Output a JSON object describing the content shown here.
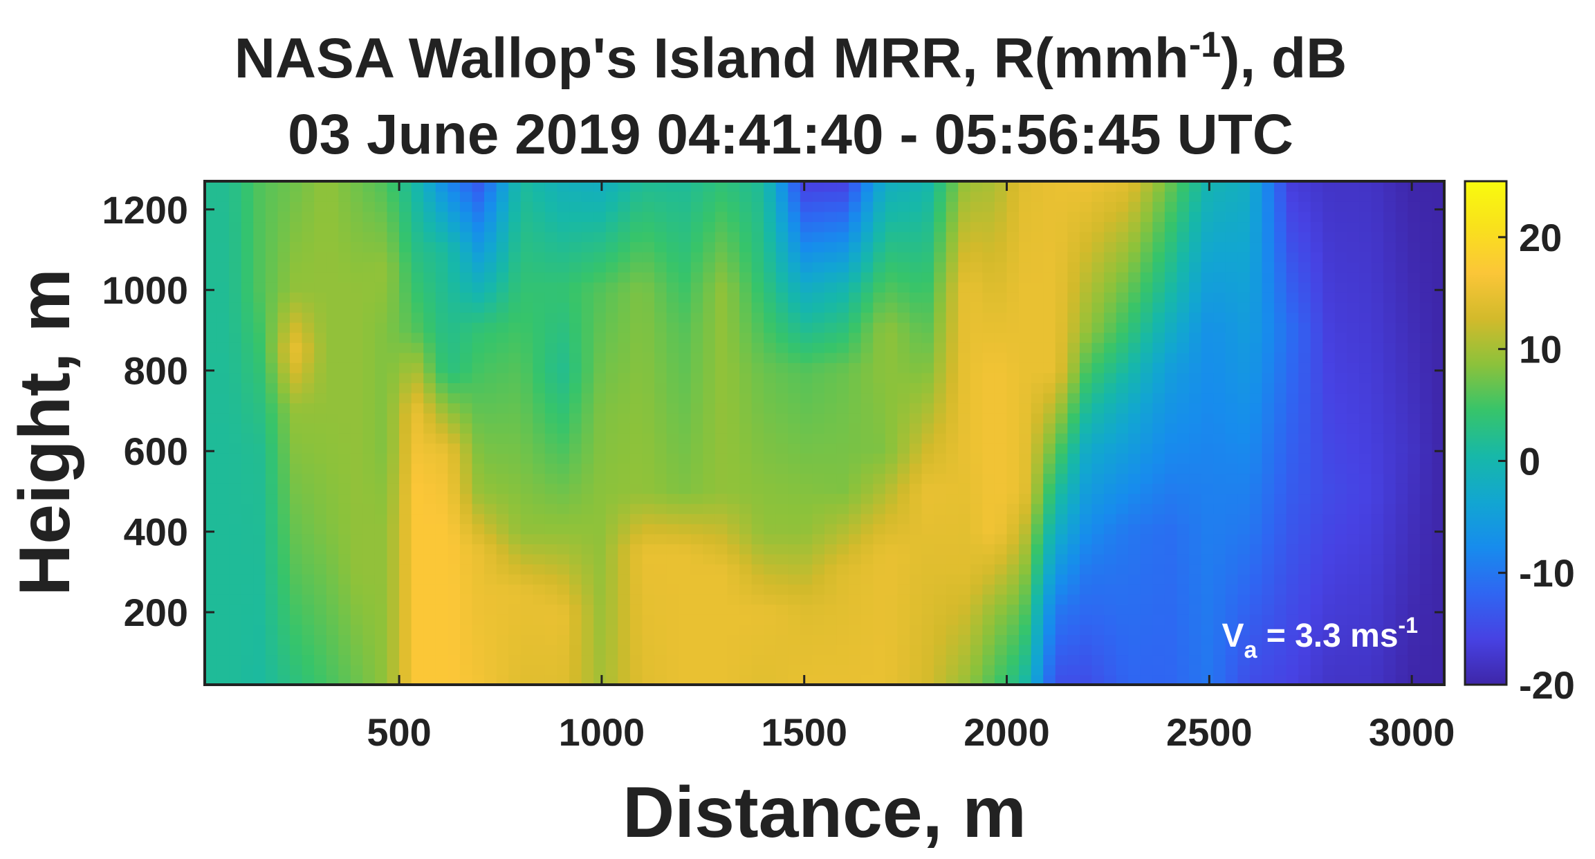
{
  "chart_data": {
    "type": "heatmap",
    "title_line1_main": "NASA Wallop's Island MRR, R(mmh",
    "title_line1_sup": "-1",
    "title_line1_end": "), dB",
    "title_line2": "03 June 2019 04:41:40 - 05:56:45 UTC",
    "xlabel": "Distance, m",
    "ylabel": "Height, m",
    "xlim": [
      20,
      3080
    ],
    "ylim": [
      20,
      1270
    ],
    "xticks": [
      500,
      1000,
      1500,
      2000,
      2500,
      3000
    ],
    "yticks": [
      200,
      400,
      600,
      800,
      1000,
      1200
    ],
    "colorbar": {
      "range": [
        -20,
        25
      ],
      "ticks": [
        -20,
        -10,
        0,
        10,
        20
      ],
      "colormap": "parula",
      "stops": [
        "#3e26a8",
        "#4742e3",
        "#2f66f2",
        "#178ced",
        "#12a6d1",
        "#17b8a8",
        "#37c46a",
        "#8cc23b",
        "#d3ba2b",
        "#fbc638",
        "#f9e11c",
        "#f9fb0e"
      ]
    },
    "annotation": {
      "main": "V",
      "sub": "a",
      "rest": " = 3.3 ms",
      "sup": "-1"
    },
    "grid": false,
    "columns": [
      {
        "x": 80,
        "profile": [
          [
            0,
            1.5
          ],
          [
            600,
            1.5
          ],
          [
            1300,
            2
          ]
        ]
      },
      {
        "x": 160,
        "profile": [
          [
            0,
            1
          ],
          [
            600,
            2
          ],
          [
            1000,
            6
          ],
          [
            1300,
            6
          ]
        ]
      },
      {
        "x": 240,
        "profile": [
          [
            0,
            3
          ],
          [
            300,
            6
          ],
          [
            700,
            9
          ],
          [
            850,
            15
          ],
          [
            1000,
            9
          ],
          [
            1300,
            7
          ]
        ]
      },
      {
        "x": 320,
        "profile": [
          [
            0,
            5
          ],
          [
            400,
            8
          ],
          [
            700,
            9
          ],
          [
            1300,
            9
          ]
        ]
      },
      {
        "x": 400,
        "profile": [
          [
            0,
            7
          ],
          [
            300,
            9
          ],
          [
            1000,
            9
          ],
          [
            1300,
            7
          ]
        ]
      },
      {
        "x": 470,
        "profile": [
          [
            0,
            9
          ],
          [
            400,
            9
          ],
          [
            600,
            8
          ],
          [
            900,
            8
          ],
          [
            1050,
            9
          ],
          [
            1300,
            5
          ]
        ]
      },
      {
        "x": 540,
        "profile": [
          [
            0,
            17
          ],
          [
            500,
            17
          ],
          [
            700,
            15
          ],
          [
            900,
            6
          ],
          [
            1150,
            2
          ],
          [
            1300,
            0
          ]
        ]
      },
      {
        "x": 620,
        "profile": [
          [
            0,
            17
          ],
          [
            400,
            17
          ],
          [
            600,
            15
          ],
          [
            800,
            3
          ],
          [
            1100,
            1
          ],
          [
            1300,
            -10
          ]
        ]
      },
      {
        "x": 700,
        "profile": [
          [
            0,
            16
          ],
          [
            350,
            15
          ],
          [
            500,
            9
          ],
          [
            900,
            4
          ],
          [
            1300,
            -15
          ]
        ]
      },
      {
        "x": 800,
        "profile": [
          [
            0,
            14
          ],
          [
            250,
            15
          ],
          [
            400,
            9
          ],
          [
            800,
            6
          ],
          [
            1300,
            1
          ]
        ]
      },
      {
        "x": 900,
        "profile": [
          [
            0,
            14
          ],
          [
            200,
            15
          ],
          [
            400,
            9
          ],
          [
            800,
            2
          ],
          [
            1000,
            4
          ],
          [
            1300,
            -2
          ]
        ]
      },
      {
        "x": 1000,
        "profile": [
          [
            0,
            10
          ],
          [
            350,
            9
          ],
          [
            700,
            8
          ],
          [
            1000,
            6
          ],
          [
            1300,
            -3
          ]
        ]
      },
      {
        "x": 1100,
        "profile": [
          [
            0,
            14
          ],
          [
            350,
            15
          ],
          [
            500,
            9
          ],
          [
            1000,
            8
          ],
          [
            1300,
            1
          ]
        ]
      },
      {
        "x": 1200,
        "profile": [
          [
            0,
            15
          ],
          [
            350,
            15
          ],
          [
            500,
            8
          ],
          [
            900,
            6
          ],
          [
            1300,
            1
          ]
        ]
      },
      {
        "x": 1300,
        "profile": [
          [
            0,
            15
          ],
          [
            300,
            15
          ],
          [
            500,
            9
          ],
          [
            1000,
            9
          ],
          [
            1300,
            3
          ]
        ]
      },
      {
        "x": 1400,
        "profile": [
          [
            0,
            14
          ],
          [
            200,
            15
          ],
          [
            400,
            9
          ],
          [
            800,
            7
          ],
          [
            1050,
            3
          ],
          [
            1300,
            1
          ]
        ]
      },
      {
        "x": 1500,
        "profile": [
          [
            0,
            15
          ],
          [
            200,
            14
          ],
          [
            400,
            9
          ],
          [
            800,
            6
          ],
          [
            1000,
            -2
          ],
          [
            1300,
            -18
          ]
        ]
      },
      {
        "x": 1600,
        "profile": [
          [
            0,
            15
          ],
          [
            300,
            14
          ],
          [
            500,
            8
          ],
          [
            800,
            7
          ],
          [
            1000,
            0
          ],
          [
            1300,
            -18
          ]
        ]
      },
      {
        "x": 1700,
        "profile": [
          [
            0,
            15
          ],
          [
            350,
            15
          ],
          [
            600,
            8
          ],
          [
            900,
            9
          ],
          [
            1300,
            -3
          ]
        ]
      },
      {
        "x": 1800,
        "profile": [
          [
            0,
            13
          ],
          [
            300,
            14
          ],
          [
            500,
            15
          ],
          [
            800,
            8
          ],
          [
            1300,
            -1
          ]
        ]
      },
      {
        "x": 1900,
        "profile": [
          [
            0,
            9
          ],
          [
            300,
            14
          ],
          [
            600,
            15
          ],
          [
            1000,
            15
          ],
          [
            1300,
            9
          ]
        ]
      },
      {
        "x": 1970,
        "profile": [
          [
            0,
            5
          ],
          [
            200,
            9
          ],
          [
            400,
            16
          ],
          [
            800,
            16
          ],
          [
            1300,
            10
          ]
        ]
      },
      {
        "x": 2040,
        "profile": [
          [
            0,
            1
          ],
          [
            250,
            8
          ],
          [
            500,
            15
          ],
          [
            1000,
            15
          ],
          [
            1300,
            14
          ]
        ]
      },
      {
        "x": 2120,
        "profile": [
          [
            0,
            -15
          ],
          [
            200,
            -10
          ],
          [
            500,
            2
          ],
          [
            800,
            15
          ],
          [
            1300,
            15
          ]
        ]
      },
      {
        "x": 2200,
        "profile": [
          [
            0,
            -15
          ],
          [
            300,
            -10
          ],
          [
            600,
            -3
          ],
          [
            900,
            9
          ],
          [
            1300,
            16
          ]
        ]
      },
      {
        "x": 2300,
        "profile": [
          [
            0,
            -12
          ],
          [
            400,
            -10
          ],
          [
            700,
            -3
          ],
          [
            900,
            4
          ],
          [
            1300,
            15
          ]
        ]
      },
      {
        "x": 2400,
        "profile": [
          [
            0,
            -12
          ],
          [
            400,
            -11
          ],
          [
            800,
            -5
          ],
          [
            1000,
            1
          ],
          [
            1300,
            8
          ]
        ]
      },
      {
        "x": 2500,
        "profile": [
          [
            0,
            -10
          ],
          [
            500,
            -9
          ],
          [
            900,
            -7
          ],
          [
            1300,
            0
          ]
        ]
      },
      {
        "x": 2600,
        "profile": [
          [
            0,
            -15
          ],
          [
            400,
            -10
          ],
          [
            800,
            -6
          ],
          [
            1300,
            -2
          ]
        ]
      },
      {
        "x": 2700,
        "profile": [
          [
            0,
            -16
          ],
          [
            500,
            -13
          ],
          [
            900,
            -11
          ],
          [
            1300,
            -17
          ]
        ]
      },
      {
        "x": 2800,
        "profile": [
          [
            0,
            -18
          ],
          [
            500,
            -15
          ],
          [
            1300,
            -18
          ]
        ]
      },
      {
        "x": 2900,
        "profile": [
          [
            0,
            -18
          ],
          [
            500,
            -16
          ],
          [
            1300,
            -18
          ]
        ]
      },
      {
        "x": 3000,
        "profile": [
          [
            0,
            -20
          ],
          [
            600,
            -18
          ],
          [
            1300,
            -20
          ]
        ]
      },
      {
        "x": 3080,
        "profile": [
          [
            0,
            -20
          ],
          [
            1300,
            -20
          ]
        ]
      }
    ]
  }
}
